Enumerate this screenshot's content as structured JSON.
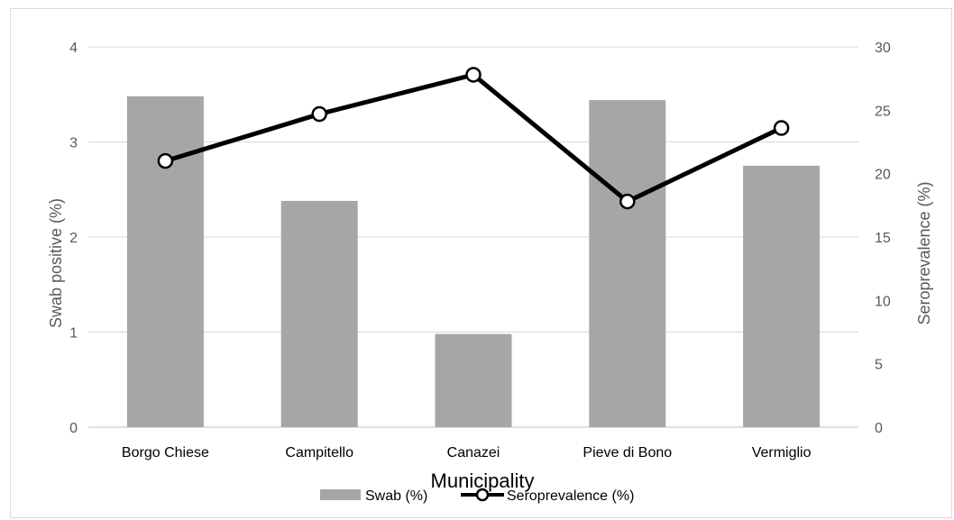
{
  "chart_data": {
    "type": "bar",
    "categories": [
      "Borgo Chiese",
      "Campitello",
      "Canazei",
      "Pieve di Bono",
      "Vermiglio"
    ],
    "series": [
      {
        "name": "Swab (%)",
        "type": "bar",
        "axis": "left",
        "color": "#a6a6a6",
        "values": [
          3.48,
          2.38,
          0.98,
          3.44,
          2.75
        ]
      },
      {
        "name": "Seroprevalence (%)",
        "type": "line",
        "axis": "right",
        "color": "#000000",
        "values": [
          21.0,
          24.7,
          27.8,
          17.8,
          23.6
        ]
      }
    ],
    "xlabel": "Municipality",
    "ylabel": "Swab positive (%)",
    "y2label": "Seroprevalence (%)",
    "ylim": [
      0,
      4
    ],
    "y2lim": [
      0,
      30
    ],
    "yticks": [
      "0",
      "1",
      "2",
      "3",
      "4"
    ],
    "y2ticks": [
      "0",
      "5",
      "10",
      "15",
      "20",
      "25",
      "30"
    ],
    "grid": true,
    "legend_position": "bottom"
  }
}
